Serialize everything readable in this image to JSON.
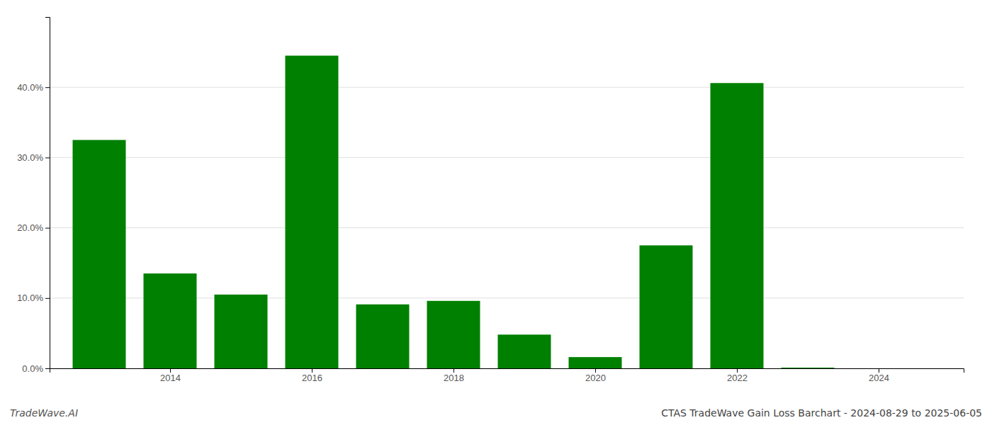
{
  "chart_data": {
    "type": "bar",
    "title": "CTAS TradeWave Gain Loss Barchart - 2024-08-29 to 2025-06-05",
    "annotations": [
      "TradeWave.AI"
    ],
    "x": [
      2013,
      2014,
      2015,
      2016,
      2017,
      2018,
      2019,
      2020,
      2021,
      2022,
      2023,
      2024
    ],
    "values": [
      0.325,
      0.135,
      0.105,
      0.445,
      0.091,
      0.096,
      0.048,
      0.016,
      0.175,
      0.406,
      0.001,
      0.0
    ],
    "color": "#008000",
    "xlim": [
      2012.3,
      2025.2
    ],
    "xticks": [
      2014,
      2016,
      2018,
      2020,
      2022,
      2024
    ],
    "ylim": [
      0,
      0.5
    ],
    "yticks": [
      {
        "value": 0.0,
        "label": "0.0%"
      },
      {
        "value": 0.1,
        "label": "10.0%"
      },
      {
        "value": 0.2,
        "label": "20.0%"
      },
      {
        "value": 0.3,
        "label": "30.0%"
      },
      {
        "value": 0.4,
        "label": "40.0%"
      }
    ],
    "grid": true
  }
}
